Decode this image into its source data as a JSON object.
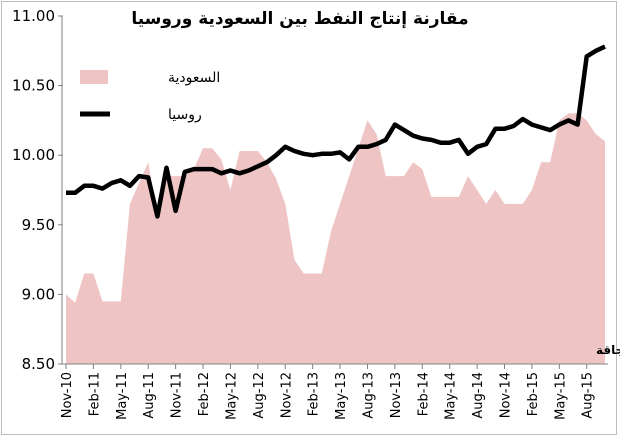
{
  "chart_data": {
    "type": "area",
    "title": "مقارنة إنتاج النفط بين السعودية وروسيا",
    "credit": "د. جاسم عجاقة",
    "ylim": [
      8.5,
      11.0
    ],
    "yticks": [
      "8.50",
      "9.00",
      "9.50",
      "10.00",
      "10.50",
      "11.00"
    ],
    "grid": false,
    "legend_position": "top-left",
    "x_tick_labels": [
      "Nov-10",
      "Feb-11",
      "May-11",
      "Aug-11",
      "Nov-11",
      "Feb-12",
      "May-12",
      "Aug-12",
      "Nov-12",
      "Feb-13",
      "May-13",
      "Aug-13",
      "Nov-13",
      "Feb-14",
      "May-14",
      "Aug-14",
      "Nov-14",
      "Feb-15",
      "May-15",
      "Aug-15"
    ],
    "series": [
      {
        "name": "السعودية",
        "type": "area",
        "color": "#efc4c4",
        "values": [
          9.0,
          8.94,
          9.15,
          9.15,
          8.95,
          8.95,
          8.95,
          9.65,
          9.8,
          9.95,
          9.55,
          9.85,
          9.85,
          9.85,
          9.9,
          10.05,
          10.05,
          9.97,
          9.75,
          10.03,
          10.03,
          10.03,
          9.95,
          9.83,
          9.65,
          9.25,
          9.15,
          9.15,
          9.15,
          9.45,
          9.65,
          9.85,
          10.05,
          10.25,
          10.15,
          9.85,
          9.85,
          9.85,
          9.95,
          9.9,
          9.7,
          9.7,
          9.7,
          9.7,
          9.85,
          9.75,
          9.65,
          9.75,
          9.65,
          9.65,
          9.65,
          9.75,
          9.95,
          9.95,
          10.25,
          10.3,
          10.3,
          10.25,
          10.15,
          10.1
        ]
      },
      {
        "name": "روسيا",
        "type": "line",
        "color": "#000000",
        "values": [
          9.73,
          9.73,
          9.78,
          9.78,
          9.76,
          9.8,
          9.82,
          9.78,
          9.85,
          9.84,
          9.56,
          9.91,
          9.6,
          9.88,
          9.9,
          9.9,
          9.9,
          9.87,
          9.89,
          9.87,
          9.89,
          9.92,
          9.95,
          10.0,
          10.06,
          10.03,
          10.01,
          10.0,
          10.01,
          10.01,
          10.02,
          9.97,
          10.06,
          10.06,
          10.08,
          10.11,
          10.22,
          10.18,
          10.14,
          10.12,
          10.11,
          10.09,
          10.09,
          10.11,
          10.01,
          10.06,
          10.08,
          10.19,
          10.19,
          10.21,
          10.26,
          10.22,
          10.2,
          10.18,
          10.22,
          10.25,
          10.22,
          10.71,
          10.75,
          10.78
        ]
      }
    ]
  }
}
